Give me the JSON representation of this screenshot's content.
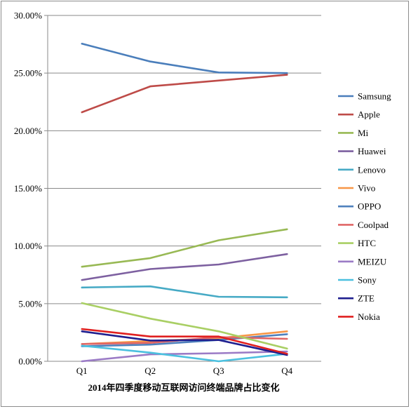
{
  "chart_data": {
    "type": "line",
    "title": "",
    "xlabel": "2014年四季度移动互联网访问终端品牌占比变化",
    "ylabel": "",
    "categories": [
      "Q1",
      "Q2",
      "Q3",
      "Q4"
    ],
    "ylim": [
      0,
      30
    ],
    "yticks": [
      "0.00%",
      "5.00%",
      "10.00%",
      "15.00%",
      "20.00%",
      "25.00%",
      "30.00%"
    ],
    "grid": true,
    "legend_position": "right",
    "series": [
      {
        "name": "Samsung",
        "color": "#4A7EBB",
        "values": [
          27.55,
          26.0,
          25.05,
          25.0
        ]
      },
      {
        "name": "Apple",
        "color": "#BE4B48",
        "values": [
          21.6,
          23.85,
          24.35,
          24.85
        ]
      },
      {
        "name": "Mi",
        "color": "#98B954",
        "values": [
          8.2,
          8.95,
          10.5,
          11.45
        ]
      },
      {
        "name": "Huawei",
        "color": "#7D60A0",
        "values": [
          7.05,
          8.0,
          8.4,
          9.3
        ]
      },
      {
        "name": "Lenovo",
        "color": "#46AAC5",
        "values": [
          6.4,
          6.5,
          5.6,
          5.55
        ]
      },
      {
        "name": "Vivo",
        "color": "#F79646",
        "values": [
          1.5,
          1.75,
          2.0,
          2.6
        ]
      },
      {
        "name": "OPPO",
        "color": "#4F81BD",
        "values": [
          1.3,
          1.45,
          1.85,
          2.35
        ]
      },
      {
        "name": "Coolpad",
        "color": "#E06666",
        "values": [
          1.5,
          1.6,
          2.1,
          1.95
        ]
      },
      {
        "name": "HTC",
        "color": "#A9CF64",
        "values": [
          5.05,
          3.7,
          2.6,
          1.1
        ]
      },
      {
        "name": "MEIZU",
        "color": "#9B7BC6",
        "values": [
          0.0,
          0.6,
          0.7,
          0.85
        ]
      },
      {
        "name": "Sony",
        "color": "#4BC0DF",
        "values": [
          1.35,
          0.75,
          0.0,
          0.65
        ]
      },
      {
        "name": "ZTE",
        "color": "#1F1F8F",
        "values": [
          2.6,
          1.8,
          1.85,
          0.55
        ]
      },
      {
        "name": "Nokia",
        "color": "#E02020",
        "values": [
          2.8,
          2.15,
          2.15,
          0.65
        ]
      }
    ]
  }
}
